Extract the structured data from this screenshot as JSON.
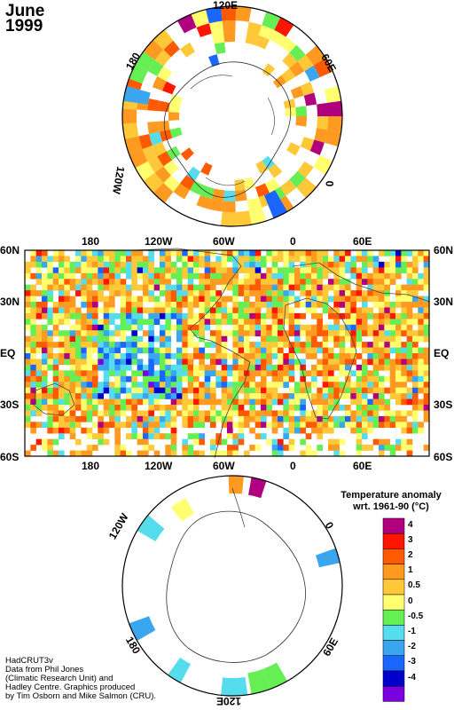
{
  "title": {
    "month": "June",
    "year": "1999"
  },
  "north_polar_labels": {
    "lon_top": "120E",
    "lon_ur": "60E",
    "lon_right": "0",
    "lon_ul": "180",
    "lon_left": "120W"
  },
  "main_map": {
    "lon_labels": [
      "180",
      "120W",
      "60W",
      "0",
      "60E"
    ],
    "lat_labels": [
      "60N",
      "30N",
      "EQ",
      "30S",
      "60S"
    ]
  },
  "south_polar_labels": {
    "lon_ul": "120W",
    "lon_ur": "0",
    "lon_ll": "180",
    "lon_lr": "60E",
    "lon_bottom": "120E"
  },
  "legend": {
    "title_line1": "Temperature anomaly",
    "title_line2": "wrt. 1961-90  (°C)",
    "bins": [
      {
        "label": "4",
        "color": "#b0007f"
      },
      {
        "label": "3",
        "color": "#ff1500"
      },
      {
        "label": "2",
        "color": "#ff5a00"
      },
      {
        "label": "1",
        "color": "#ff9a20"
      },
      {
        "label": "0.5",
        "color": "#ffc838"
      },
      {
        "label": "0",
        "color": "#ffff70"
      },
      {
        "label": "-0.5",
        "color": "#66ee55"
      },
      {
        "label": "-1",
        "color": "#55ddee"
      },
      {
        "label": "-2",
        "color": "#3aa6f0"
      },
      {
        "label": "-3",
        "color": "#1a66ff"
      },
      {
        "label": "-4",
        "color": "#0000cc"
      },
      {
        "label": "",
        "color": "#7a00e0"
      }
    ]
  },
  "credits": [
    "HadCRUT3v",
    "Data from Phil Jones",
    "(Climatic Research Unit) and",
    "Hadley Centre.  Graphics produced",
    "by Tim Osborn and Mike Salmon (CRU)."
  ]
}
